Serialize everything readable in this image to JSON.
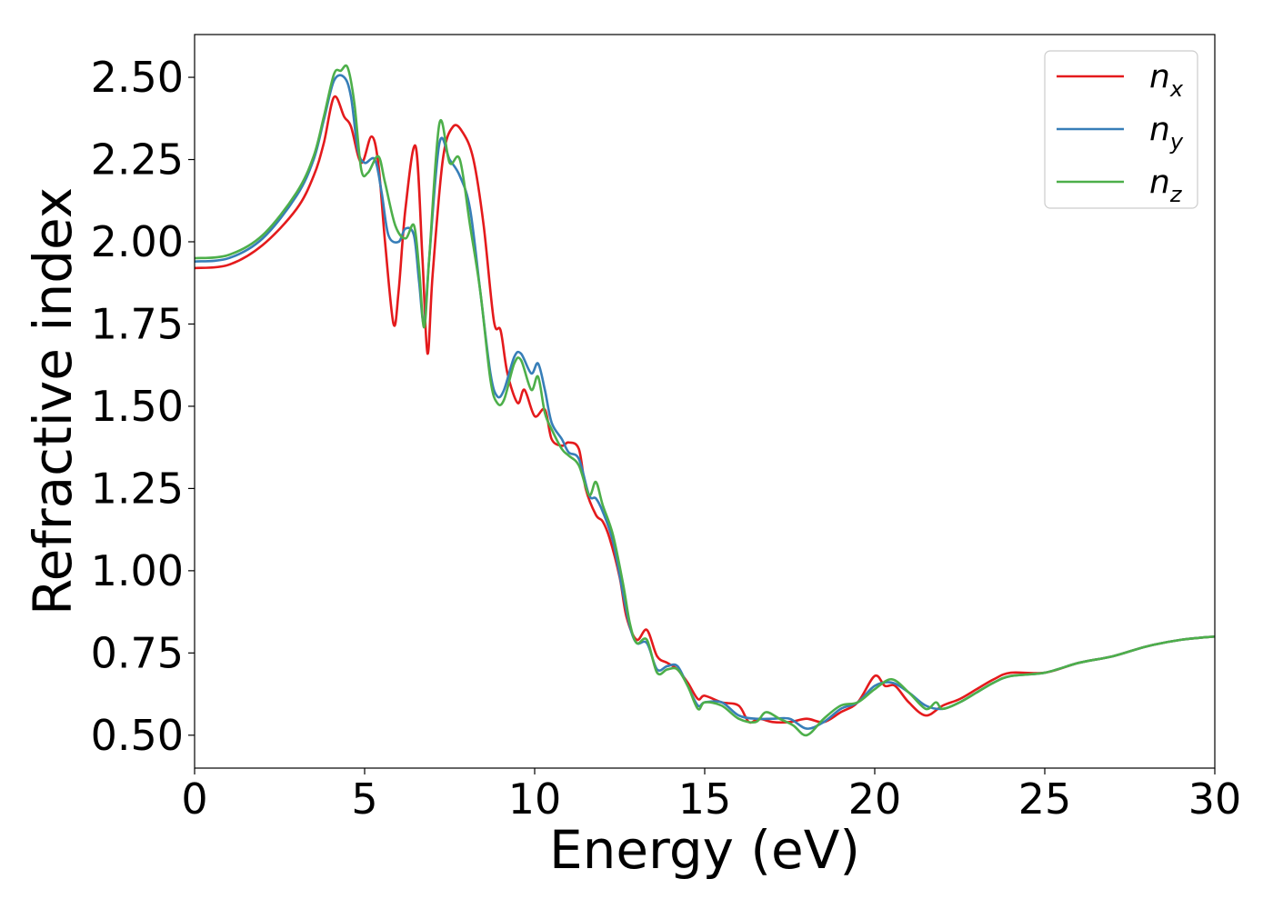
{
  "chart_data": {
    "type": "line",
    "xlabel": "Energy (eV)",
    "ylabel": "Refractive index",
    "xlim": [
      0,
      30
    ],
    "ylim": [
      0.4,
      2.63
    ],
    "xticks": [
      0,
      5,
      10,
      15,
      20,
      25,
      30
    ],
    "xtick_labels": [
      "0",
      "5",
      "10",
      "15",
      "20",
      "25",
      "30"
    ],
    "yticks": [
      0.5,
      0.75,
      1.0,
      1.25,
      1.5,
      1.75,
      2.0,
      2.25,
      2.5
    ],
    "ytick_labels": [
      "0.50",
      "0.75",
      "1.00",
      "1.25",
      "1.50",
      "1.75",
      "2.00",
      "2.25",
      "2.50"
    ],
    "grid": false,
    "legend_position": "top-right",
    "series": [
      {
        "name": "n_x",
        "label_base": "n",
        "label_sub": "x",
        "color": "#e41a1c",
        "points": [
          [
            0,
            1.92
          ],
          [
            1,
            1.93
          ],
          [
            2,
            1.99
          ],
          [
            3,
            2.1
          ],
          [
            3.5,
            2.2
          ],
          [
            3.8,
            2.3
          ],
          [
            4.1,
            2.44
          ],
          [
            4.4,
            2.38
          ],
          [
            4.6,
            2.35
          ],
          [
            4.9,
            2.24
          ],
          [
            5.2,
            2.32
          ],
          [
            5.4,
            2.24
          ],
          [
            5.6,
            2.0
          ],
          [
            5.85,
            1.75
          ],
          [
            6.0,
            1.85
          ],
          [
            6.2,
            2.1
          ],
          [
            6.5,
            2.29
          ],
          [
            6.7,
            1.95
          ],
          [
            6.85,
            1.66
          ],
          [
            7.0,
            1.9
          ],
          [
            7.3,
            2.25
          ],
          [
            7.6,
            2.35
          ],
          [
            7.9,
            2.33
          ],
          [
            8.2,
            2.25
          ],
          [
            8.5,
            2.05
          ],
          [
            8.8,
            1.76
          ],
          [
            9.0,
            1.73
          ],
          [
            9.2,
            1.6
          ],
          [
            9.5,
            1.51
          ],
          [
            9.7,
            1.55
          ],
          [
            10.0,
            1.47
          ],
          [
            10.3,
            1.49
          ],
          [
            10.5,
            1.4
          ],
          [
            10.8,
            1.38
          ],
          [
            11.0,
            1.39
          ],
          [
            11.3,
            1.37
          ],
          [
            11.5,
            1.25
          ],
          [
            11.8,
            1.17
          ],
          [
            12.0,
            1.15
          ],
          [
            12.2,
            1.1
          ],
          [
            12.5,
            0.98
          ],
          [
            12.7,
            0.86
          ],
          [
            13.0,
            0.79
          ],
          [
            13.3,
            0.82
          ],
          [
            13.6,
            0.74
          ],
          [
            13.9,
            0.72
          ],
          [
            14.2,
            0.7
          ],
          [
            14.5,
            0.66
          ],
          [
            14.8,
            0.61
          ],
          [
            15.0,
            0.62
          ],
          [
            15.5,
            0.6
          ],
          [
            16.0,
            0.59
          ],
          [
            16.3,
            0.54
          ],
          [
            16.6,
            0.55
          ],
          [
            17.0,
            0.54
          ],
          [
            17.5,
            0.54
          ],
          [
            18.0,
            0.55
          ],
          [
            18.5,
            0.54
          ],
          [
            19.0,
            0.57
          ],
          [
            19.5,
            0.6
          ],
          [
            20.0,
            0.68
          ],
          [
            20.3,
            0.65
          ],
          [
            20.6,
            0.65
          ],
          [
            21.0,
            0.6
          ],
          [
            21.5,
            0.56
          ],
          [
            22.0,
            0.59
          ],
          [
            22.5,
            0.61
          ],
          [
            23.0,
            0.64
          ],
          [
            23.5,
            0.67
          ],
          [
            24.0,
            0.69
          ],
          [
            25.0,
            0.69
          ],
          [
            26.0,
            0.72
          ],
          [
            27.0,
            0.74
          ],
          [
            28.0,
            0.77
          ],
          [
            29.0,
            0.79
          ],
          [
            30.0,
            0.8
          ]
        ]
      },
      {
        "name": "n_y",
        "label_base": "n",
        "label_sub": "y",
        "color": "#377eb8",
        "points": [
          [
            0,
            1.94
          ],
          [
            1,
            1.95
          ],
          [
            2,
            2.01
          ],
          [
            3,
            2.14
          ],
          [
            3.5,
            2.25
          ],
          [
            3.8,
            2.37
          ],
          [
            4.1,
            2.49
          ],
          [
            4.4,
            2.5
          ],
          [
            4.6,
            2.44
          ],
          [
            4.8,
            2.28
          ],
          [
            5.0,
            2.24
          ],
          [
            5.3,
            2.25
          ],
          [
            5.5,
            2.15
          ],
          [
            5.7,
            2.02
          ],
          [
            6.0,
            2.0
          ],
          [
            6.2,
            2.04
          ],
          [
            6.45,
            2.02
          ],
          [
            6.6,
            1.88
          ],
          [
            6.75,
            1.75
          ],
          [
            6.9,
            1.95
          ],
          [
            7.2,
            2.3
          ],
          [
            7.5,
            2.25
          ],
          [
            7.8,
            2.2
          ],
          [
            8.1,
            2.1
          ],
          [
            8.4,
            1.85
          ],
          [
            8.7,
            1.6
          ],
          [
            8.9,
            1.53
          ],
          [
            9.1,
            1.55
          ],
          [
            9.4,
            1.65
          ],
          [
            9.6,
            1.66
          ],
          [
            9.9,
            1.6
          ],
          [
            10.1,
            1.63
          ],
          [
            10.3,
            1.55
          ],
          [
            10.5,
            1.45
          ],
          [
            10.8,
            1.4
          ],
          [
            11.0,
            1.36
          ],
          [
            11.3,
            1.34
          ],
          [
            11.6,
            1.23
          ],
          [
            11.8,
            1.22
          ],
          [
            12.0,
            1.18
          ],
          [
            12.3,
            1.09
          ],
          [
            12.6,
            0.93
          ],
          [
            12.8,
            0.83
          ],
          [
            13.0,
            0.78
          ],
          [
            13.3,
            0.78
          ],
          [
            13.6,
            0.7
          ],
          [
            13.9,
            0.71
          ],
          [
            14.2,
            0.71
          ],
          [
            14.5,
            0.65
          ],
          [
            14.8,
            0.59
          ],
          [
            15.0,
            0.6
          ],
          [
            15.5,
            0.6
          ],
          [
            16.0,
            0.56
          ],
          [
            16.5,
            0.55
          ],
          [
            17.0,
            0.55
          ],
          [
            17.5,
            0.55
          ],
          [
            18.0,
            0.52
          ],
          [
            18.5,
            0.54
          ],
          [
            19.0,
            0.58
          ],
          [
            19.5,
            0.6
          ],
          [
            20.0,
            0.65
          ],
          [
            20.5,
            0.66
          ],
          [
            21.0,
            0.63
          ],
          [
            21.5,
            0.59
          ],
          [
            22.0,
            0.58
          ],
          [
            22.5,
            0.6
          ],
          [
            23.0,
            0.63
          ],
          [
            23.5,
            0.66
          ],
          [
            24.0,
            0.68
          ],
          [
            25.0,
            0.69
          ],
          [
            26.0,
            0.72
          ],
          [
            27.0,
            0.74
          ],
          [
            28.0,
            0.77
          ],
          [
            29.0,
            0.79
          ],
          [
            30.0,
            0.8
          ]
        ]
      },
      {
        "name": "n_z",
        "label_base": "n",
        "label_sub": "z",
        "color": "#4daf4a",
        "points": [
          [
            0,
            1.95
          ],
          [
            1,
            1.96
          ],
          [
            2,
            2.02
          ],
          [
            3,
            2.15
          ],
          [
            3.5,
            2.26
          ],
          [
            3.8,
            2.38
          ],
          [
            4.1,
            2.51
          ],
          [
            4.3,
            2.52
          ],
          [
            4.5,
            2.53
          ],
          [
            4.7,
            2.42
          ],
          [
            4.9,
            2.22
          ],
          [
            5.1,
            2.21
          ],
          [
            5.4,
            2.26
          ],
          [
            5.6,
            2.18
          ],
          [
            5.9,
            2.05
          ],
          [
            6.2,
            2.01
          ],
          [
            6.45,
            2.05
          ],
          [
            6.6,
            1.92
          ],
          [
            6.75,
            1.74
          ],
          [
            6.9,
            1.95
          ],
          [
            7.2,
            2.36
          ],
          [
            7.5,
            2.24
          ],
          [
            7.8,
            2.25
          ],
          [
            8.1,
            2.05
          ],
          [
            8.4,
            1.85
          ],
          [
            8.7,
            1.58
          ],
          [
            8.9,
            1.51
          ],
          [
            9.1,
            1.52
          ],
          [
            9.4,
            1.63
          ],
          [
            9.6,
            1.64
          ],
          [
            9.9,
            1.55
          ],
          [
            10.1,
            1.59
          ],
          [
            10.3,
            1.48
          ],
          [
            10.5,
            1.43
          ],
          [
            10.8,
            1.37
          ],
          [
            11.0,
            1.35
          ],
          [
            11.3,
            1.32
          ],
          [
            11.6,
            1.23
          ],
          [
            11.8,
            1.27
          ],
          [
            12.0,
            1.2
          ],
          [
            12.3,
            1.11
          ],
          [
            12.6,
            0.96
          ],
          [
            12.8,
            0.84
          ],
          [
            13.0,
            0.78
          ],
          [
            13.3,
            0.79
          ],
          [
            13.6,
            0.69
          ],
          [
            13.9,
            0.7
          ],
          [
            14.2,
            0.7
          ],
          [
            14.5,
            0.65
          ],
          [
            14.8,
            0.58
          ],
          [
            15.0,
            0.6
          ],
          [
            15.5,
            0.59
          ],
          [
            16.0,
            0.55
          ],
          [
            16.5,
            0.54
          ],
          [
            16.8,
            0.57
          ],
          [
            17.2,
            0.55
          ],
          [
            17.6,
            0.53
          ],
          [
            18.0,
            0.5
          ],
          [
            18.5,
            0.55
          ],
          [
            19.0,
            0.59
          ],
          [
            19.5,
            0.6
          ],
          [
            20.0,
            0.64
          ],
          [
            20.5,
            0.67
          ],
          [
            21.0,
            0.63
          ],
          [
            21.5,
            0.58
          ],
          [
            21.8,
            0.6
          ],
          [
            22.0,
            0.58
          ],
          [
            22.5,
            0.6
          ],
          [
            23.0,
            0.63
          ],
          [
            23.5,
            0.66
          ],
          [
            24.0,
            0.68
          ],
          [
            25.0,
            0.69
          ],
          [
            26.0,
            0.72
          ],
          [
            27.0,
            0.74
          ],
          [
            28.0,
            0.77
          ],
          [
            29.0,
            0.79
          ],
          [
            30.0,
            0.8
          ]
        ]
      }
    ]
  }
}
